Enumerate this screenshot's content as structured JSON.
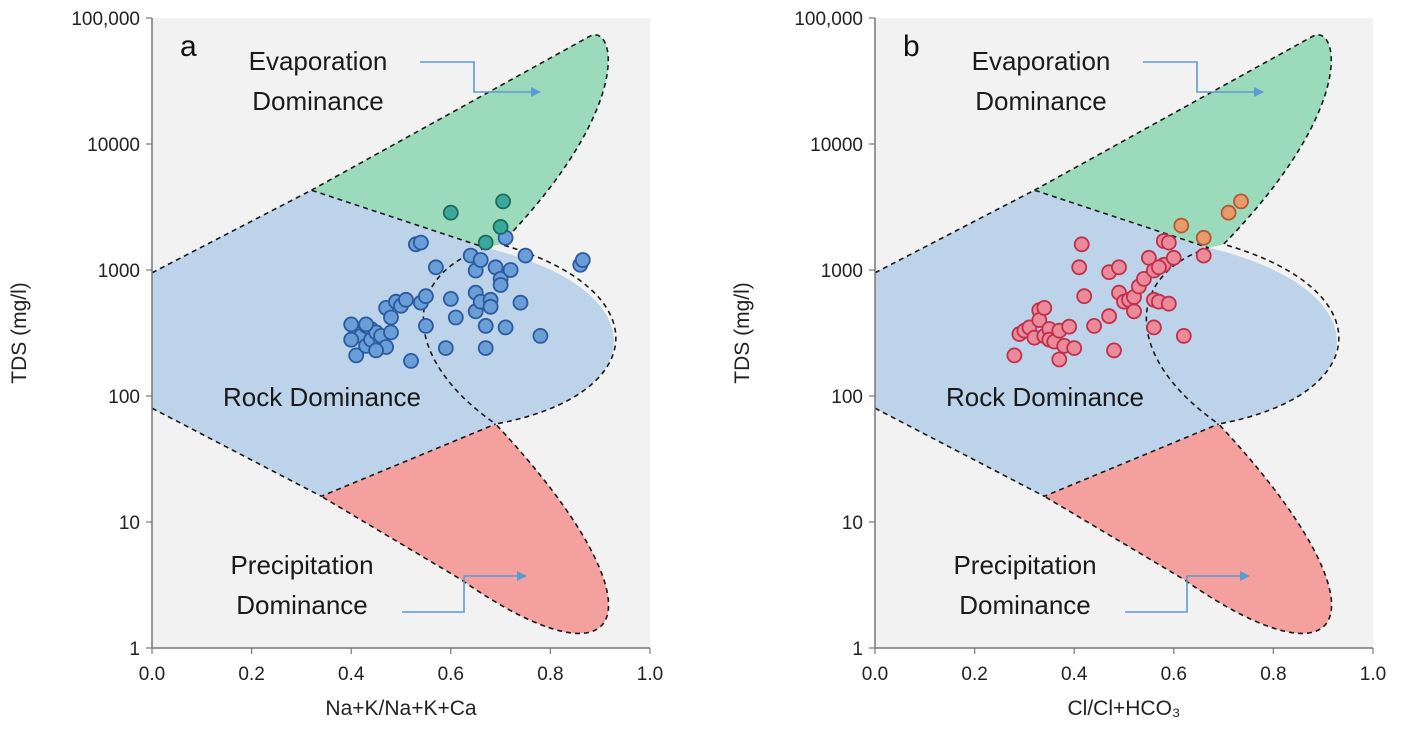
{
  "chart_data": [
    {
      "type": "scatter",
      "panel_label": "a",
      "xlabel": "Na+K/Na+K+Ca",
      "ylabel": "TDS (mg/l)",
      "xlim": [
        0,
        1
      ],
      "ylim": [
        1,
        100000
      ],
      "y_scale": "log",
      "x_ticks": [
        "0.0",
        "0.2",
        "0.4",
        "0.6",
        "0.8",
        "1.0"
      ],
      "y_ticks": [
        "1",
        "10",
        "100",
        "1000",
        "10000",
        "100,000"
      ],
      "grid": false,
      "regions": [
        {
          "name": "Evaporation Dominance",
          "color": "#9bdabb",
          "label_lines": [
            "Evaporation",
            "Dominance"
          ]
        },
        {
          "name": "Rock Dominance",
          "color": "#bcd3ea",
          "label_lines": [
            "Rock Dominance"
          ]
        },
        {
          "name": "Precipitation Dominance",
          "color": "#f4a09e",
          "label_lines": [
            "Precipitation",
            "Dominance"
          ]
        }
      ],
      "marker": {
        "fill": "#6a9ed6",
        "stroke": "#2c5aa0"
      },
      "points_highlight": {
        "fill": "#3aa89a",
        "stroke": "#206a60"
      },
      "points": [
        [
          0.4,
          370
        ],
        [
          0.41,
          210
        ],
        [
          0.42,
          300
        ],
        [
          0.43,
          360
        ],
        [
          0.43,
          250
        ],
        [
          0.44,
          340
        ],
        [
          0.44,
          280
        ],
        [
          0.45,
          320
        ],
        [
          0.46,
          270
        ],
        [
          0.46,
          300
        ],
        [
          0.47,
          245
        ],
        [
          0.47,
          500
        ],
        [
          0.48,
          420
        ],
        [
          0.48,
          320
        ],
        [
          0.49,
          560
        ],
        [
          0.5,
          520
        ],
        [
          0.51,
          580
        ],
        [
          0.52,
          190
        ],
        [
          0.53,
          1600
        ],
        [
          0.54,
          1650
        ],
        [
          0.54,
          550
        ],
        [
          0.55,
          360
        ],
        [
          0.55,
          620
        ],
        [
          0.57,
          1050
        ],
        [
          0.59,
          240
        ],
        [
          0.6,
          590
        ],
        [
          0.61,
          420
        ],
        [
          0.64,
          1300
        ],
        [
          0.65,
          990
        ],
        [
          0.65,
          660
        ],
        [
          0.65,
          470
        ],
        [
          0.66,
          1200
        ],
        [
          0.66,
          560
        ],
        [
          0.67,
          360
        ],
        [
          0.67,
          240
        ],
        [
          0.68,
          580
        ],
        [
          0.68,
          510
        ],
        [
          0.69,
          1050
        ],
        [
          0.7,
          850
        ],
        [
          0.7,
          760
        ],
        [
          0.71,
          350
        ],
        [
          0.72,
          1000
        ],
        [
          0.74,
          550
        ],
        [
          0.75,
          1300
        ],
        [
          0.78,
          300
        ],
        [
          0.86,
          1100
        ],
        [
          0.865,
          1200
        ],
        [
          0.4,
          280
        ],
        [
          0.45,
          230
        ],
        [
          0.43,
          370
        ],
        [
          0.71,
          1800
        ]
      ],
      "highlight_points": [
        [
          0.6,
          2850
        ],
        [
          0.67,
          1650
        ],
        [
          0.7,
          2200
        ],
        [
          0.705,
          3500
        ]
      ]
    },
    {
      "type": "scatter",
      "panel_label": "b",
      "xlabel": "Cl/Cl+HCO₃",
      "ylabel": "TDS (mg/l)",
      "xlim": [
        0,
        1
      ],
      "ylim": [
        1,
        100000
      ],
      "y_scale": "log",
      "x_ticks": [
        "0.0",
        "0.2",
        "0.4",
        "0.6",
        "0.8",
        "1.0"
      ],
      "y_ticks": [
        "1",
        "10",
        "100",
        "1000",
        "10000",
        "100,000"
      ],
      "grid": false,
      "regions": [
        {
          "name": "Evaporation Dominance",
          "color": "#9bdabb",
          "label_lines": [
            "Evaporation",
            "Dominance"
          ]
        },
        {
          "name": "Rock Dominance",
          "color": "#bcd3ea",
          "label_lines": [
            "Rock Dominance"
          ]
        },
        {
          "name": "Precipitation Dominance",
          "color": "#f4a09e",
          "label_lines": [
            "Precipitation",
            "Dominance"
          ]
        }
      ],
      "marker": {
        "fill": "#eb8a9a",
        "stroke": "#c0304a"
      },
      "points_highlight": {
        "fill": "#e89a6a",
        "stroke": "#b05a3a"
      },
      "points": [
        [
          0.28,
          210
        ],
        [
          0.29,
          310
        ],
        [
          0.3,
          330
        ],
        [
          0.31,
          350
        ],
        [
          0.32,
          290
        ],
        [
          0.33,
          480
        ],
        [
          0.33,
          400
        ],
        [
          0.34,
          300
        ],
        [
          0.34,
          500
        ],
        [
          0.35,
          340
        ],
        [
          0.35,
          280
        ],
        [
          0.36,
          270
        ],
        [
          0.37,
          330
        ],
        [
          0.37,
          195
        ],
        [
          0.38,
          250
        ],
        [
          0.39,
          355
        ],
        [
          0.4,
          240
        ],
        [
          0.41,
          1050
        ],
        [
          0.415,
          1600
        ],
        [
          0.42,
          620
        ],
        [
          0.44,
          360
        ],
        [
          0.47,
          430
        ],
        [
          0.47,
          960
        ],
        [
          0.48,
          230
        ],
        [
          0.49,
          1050
        ],
        [
          0.49,
          660
        ],
        [
          0.5,
          560
        ],
        [
          0.51,
          580
        ],
        [
          0.52,
          470
        ],
        [
          0.52,
          610
        ],
        [
          0.53,
          740
        ],
        [
          0.54,
          850
        ],
        [
          0.55,
          1250
        ],
        [
          0.56,
          350
        ],
        [
          0.56,
          990
        ],
        [
          0.56,
          580
        ],
        [
          0.57,
          560
        ],
        [
          0.58,
          1100
        ],
        [
          0.58,
          1700
        ],
        [
          0.59,
          1650
        ],
        [
          0.59,
          540
        ],
        [
          0.6,
          1250
        ],
        [
          0.62,
          300
        ],
        [
          0.66,
          1300
        ],
        [
          0.57,
          1050
        ]
      ],
      "highlight_points": [
        [
          0.615,
          2250
        ],
        [
          0.66,
          1800
        ],
        [
          0.71,
          2850
        ],
        [
          0.735,
          3500
        ]
      ]
    }
  ]
}
